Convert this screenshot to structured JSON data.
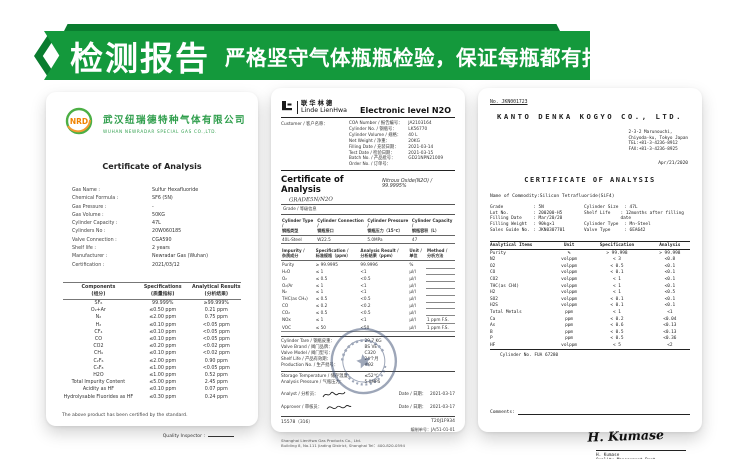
{
  "banner": {
    "title": "检测报告",
    "subtitle": "严格坚守气体瓶瓶检验，保证每瓶都有报告可查",
    "color_main": "#14993c",
    "color_dark": "#0a7c2f"
  },
  "newradar": {
    "logo": "NRD",
    "brand_green": "#2f9e4c",
    "company_cn": "武汉纽瑞德特种气体有限公司",
    "company_en": "WUHAN NEWRADAR SPECIAL GAS CO.,LTD.",
    "title": "Certificate of Analysis",
    "info": [
      [
        "Gas Name :",
        "Sulfur Hexafluoride"
      ],
      [
        "Chemical Formula :",
        "SF6 (5N)"
      ],
      [
        "Gas Pressure :",
        "-"
      ],
      [
        "Gas Volume :",
        "50KG"
      ],
      [
        "Cylinder Capacity :",
        "47L"
      ],
      [
        "Cylinders No :",
        "20W060185"
      ],
      [
        "Valve Connection :",
        "CGA590"
      ],
      [
        "Shelf life :",
        "2 years"
      ],
      [
        "Manufacturer :",
        "Newradar Gas (Wuhan)"
      ],
      [
        "Certification :",
        "2021/03/12"
      ]
    ],
    "table": {
      "headers": [
        "Components\n(组分)",
        "Specifications\n(质量指标)",
        "Analytical Results\n(分析结果)"
      ],
      "rows": [
        [
          "SF₆",
          "99.999%",
          "≥99.999%"
        ],
        [
          "O₂+Ar",
          "≤0.50  ppm",
          "0.21  ppm"
        ],
        [
          "N₂",
          "≤2.00  ppm",
          "0.75  ppm"
        ],
        [
          "H₂",
          "≤0.10  ppm",
          "<0.05  ppm"
        ],
        [
          "CF₄",
          "≤0.10  ppm",
          "<0.05  ppm"
        ],
        [
          "CO",
          "≤0.10  ppm",
          "<0.05  ppm"
        ],
        [
          "CO2",
          "≤0.20  ppm",
          "<0.02  ppm"
        ],
        [
          "CH₄",
          "≤0.10  ppm",
          "<0.02  ppm"
        ],
        [
          "C₂F₆",
          "≤2.00  ppm",
          "0.90  ppm"
        ],
        [
          "C₃F₈",
          "≤1.00  ppm",
          "<0.05  ppm"
        ],
        [
          "H2O",
          "≤1.00  ppm",
          "0.52  ppm"
        ],
        [
          "Total Impurity Content",
          "≤5.00  ppm",
          "2.45  ppm"
        ],
        [
          "Acidity  as  HF",
          "≤0.10  ppm",
          "0.07  ppm"
        ],
        [
          "Hydrolysable Fluorides as HF",
          "≤0.30  ppm",
          "0.24  ppm"
        ]
      ]
    },
    "note": "The above product has been certified by the standard.",
    "inspector_label": "Quality Inspector :"
  },
  "linde": {
    "brand_cn": "联华林德",
    "brand_en": "Linde LienHwa",
    "product_title": "Electronic level N2O",
    "customer_label": "Customer / 客户名称：",
    "head_info": [
      [
        "COA Number / 报告编号：",
        "JA2103164"
      ],
      [
        "Cylinder No. / 钢瓶号：",
        "LK56770"
      ],
      [
        "Cylinder Volume / 规格：",
        "40 L"
      ],
      [
        "Net Weight / 净重：",
        "20KG"
      ],
      [
        "Filling Date / 充装日期：",
        "2021-03-14"
      ],
      [
        "Test Date / 检验日期：",
        "2021-03-15"
      ],
      [
        "Batch No. / 产品批号：",
        "GD21NPN21009"
      ],
      [
        "Order No. / 订单号：",
        ""
      ]
    ],
    "coa_title": "Certificate of Analysis",
    "coa_grade_note": "GRADE5N/N2O",
    "product_spec": "Nitrous Oxide(N2O) / 99.9995%",
    "section_label": "Grade / 等级信息",
    "cyl_table": {
      "headers": [
        "Cylinder Type /\n钢瓶类型",
        "Cylinder Connection /\n钢瓶接口",
        "Cylinder Pressure /\n钢瓶压力（15℃）",
        "Cylinder Capacity /\n钢瓶容积（L）"
      ],
      "values": [
        "40L-Steel",
        "W22.5",
        "5.0MPa",
        "47"
      ]
    },
    "imp_table": {
      "headers": [
        "Impurity /\n杂质成分",
        "Specification /\n标准规格（ppm）",
        "Analysis Result /\n分析结果（ppm）",
        "Unit /\n单位",
        "Method /\n分析方法"
      ],
      "rows": [
        [
          "Purity",
          "≥ 99.9995",
          "99.9996",
          "%",
          ""
        ],
        [
          "H₂O",
          "≤ 1",
          "<1",
          "μl/l",
          ""
        ],
        [
          "O₂",
          "≤ 0.5",
          "<0.5",
          "μl/l",
          ""
        ],
        [
          "O₂/Ar",
          "≤ 1",
          "<1",
          "μl/l",
          ""
        ],
        [
          "N₂",
          "≤ 1",
          "<1",
          "μl/l",
          ""
        ],
        [
          "THC(as CH₄)",
          "≤ 0.5",
          "<0.5",
          "μl/l",
          ""
        ],
        [
          "CO",
          "≤ 0.2",
          "<0.2",
          "μl/l",
          ""
        ],
        [
          "CO₂",
          "≤ 0.5",
          "<0.5",
          "μl/l",
          ""
        ],
        [
          "NOx",
          "≤ 1",
          "<1",
          "μl/l",
          "1 ppm F.S."
        ],
        [
          "VOC",
          "≤ 50",
          "<50",
          "μl/l",
          "1 ppm F.S."
        ]
      ]
    },
    "mid_info": [
      [
        "Cylinder Tare / 钢瓶皮重：",
        "29.7 KG"
      ],
      [
        "Valve Brand / 阀门品牌：",
        "BS VE"
      ],
      [
        "Valve Model / 阀门型号：",
        "C320"
      ],
      [
        "Shelf Life / 产品有效期：",
        "24个月"
      ],
      [
        "Production No. / 生产批号：",
        "#92"
      ]
    ],
    "env_info": [
      [
        "Storage Temperature / 储存温度：",
        "≤52℃"
      ],
      [
        "Analysis Pressure / 气瓶压力：",
        "5.0MPa"
      ]
    ],
    "analyst_label": "Analyst / 分析员：",
    "analyst_date_label": "Date / 日期：",
    "analyst_date": "2021-03-17",
    "approver_label": "Approver / 审核员：",
    "approver_date_label": "Date / 日期：",
    "approver_date": "2021-03-17",
    "ref_left": "15578（316）",
    "ref_right": "T20J1F934",
    "doc_no": "编制单号：JA/51-01-01",
    "footer_line1": "Shanghai LienHwa Gas Products Co., Ltd.",
    "footer_line2": "Building 8, No.111 Jiading District, Shanghai  Tel：400-820-0594",
    "stamp_color": "#3d4f73"
  },
  "kanto": {
    "doc_no": "No. JKN001723",
    "company": "KANTO DENKA KOGYO CO., LTD.",
    "addr": [
      "2-3-2 Marunouchi,",
      "Chiyoda-ku, Tokyo Japan",
      "TEL:+81-3-4236-8912",
      "FAX:+81-3-4236-8925"
    ],
    "date": "Apr/21/2020",
    "title": "CERTIFICATE OF ANALYSIS",
    "commodity": "Name of Commodity:Silicon Tetrafluoride(SiF4)",
    "info_left": [
      [
        "Grade",
        ": 5N"
      ],
      [
        "Lot No.",
        ": 200200-H5"
      ],
      [
        "Filling Date",
        ": Mar/20/20"
      ],
      [
        "Filling Weight",
        ": 90kg×1"
      ],
      [
        "Sales Guide No.",
        ": JKN0307701"
      ]
    ],
    "info_right": [
      [
        "Cylinder Size",
        ": 47L"
      ],
      [
        "Shelf Life",
        ": 12months after filling date"
      ],
      [
        "Cylinder Type",
        ": Mn-Steel"
      ],
      [
        "Valve Type",
        ": 6EA642"
      ]
    ],
    "table": {
      "headers": [
        "Analytical Items",
        "Unit",
        "Specification",
        "Analysis"
      ],
      "rows": [
        [
          "Purity",
          "%",
          "> 99.998",
          "> 99.998"
        ],
        [
          "N2",
          "volppm",
          "<  3",
          "<0.8"
        ],
        [
          "O2",
          "volppm",
          "<  0.5",
          "<0.1"
        ],
        [
          "CO",
          "volppm",
          "<  0.1",
          "<0.1"
        ],
        [
          "CO2",
          "volppm",
          "<  1",
          "<0.1"
        ],
        [
          "THC(as CH4)",
          "volppm",
          "<  1",
          "<0.1"
        ],
        [
          "H2",
          "volppm",
          "<  1",
          "<0.5"
        ],
        [
          "SO2",
          "volppm",
          "<  0.1",
          "<0.1"
        ],
        [
          "H2S",
          "volppm",
          "<  0.1",
          "<0.1"
        ],
        [
          "Total Metals",
          "ppm",
          "<  1",
          "<1"
        ],
        [
          "Ca",
          "ppm",
          "<  0.2",
          "<0.04"
        ],
        [
          "As",
          "ppm",
          "<  0.6",
          "<0.13"
        ],
        [
          "B",
          "ppm",
          "<  0.5",
          "<0.13"
        ],
        [
          "P",
          "ppm",
          "<  0.5",
          "<0.36"
        ],
        [
          "HF",
          "volppm",
          "<  5",
          "<2"
        ]
      ]
    },
    "cylinder_no": "Cylinder No. FUA 67280",
    "comments_label": "Comments:",
    "signature": "H. Kumase",
    "sign_block": [
      "H. Kumase",
      "Quality Management Dept.",
      "KANTO DENKA KOGYO CO., LTD."
    ]
  }
}
